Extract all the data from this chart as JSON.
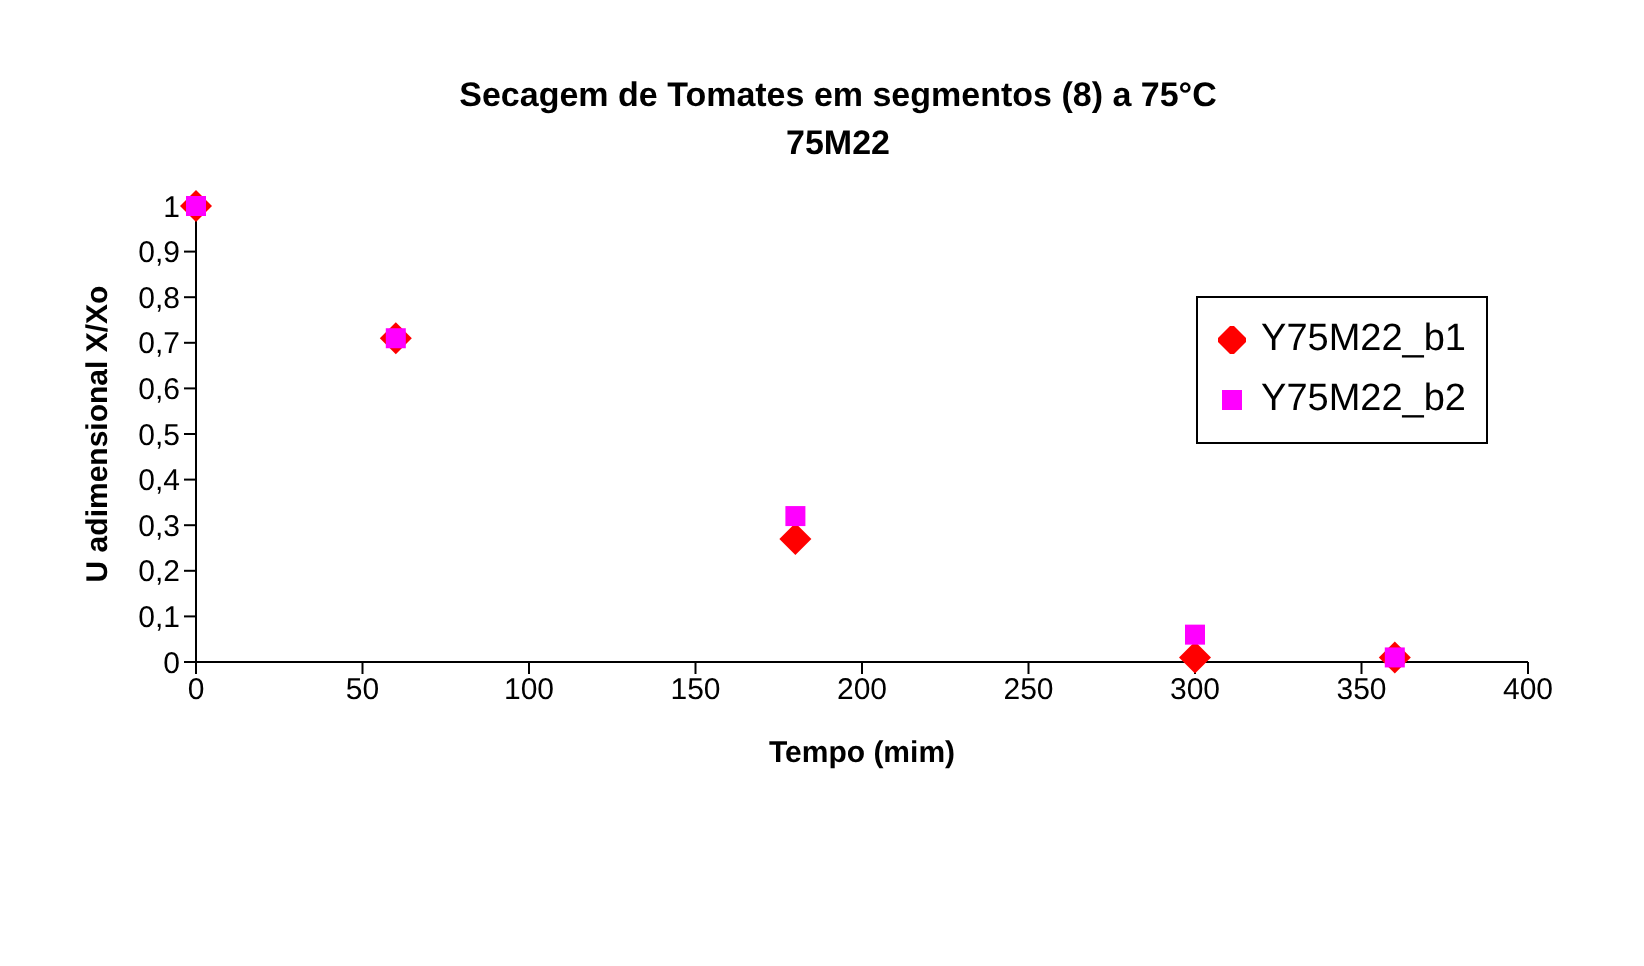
{
  "chart_data": {
    "type": "scatter",
    "title": "Secagem de Tomates em segmentos (8) a 75°C\n75M22",
    "xlabel": "Tempo (mim)",
    "ylabel": "U adimensional X/Xo",
    "series": [
      {
        "name": "Y75M22_b1",
        "color": "#ff0000",
        "marker": "diamond",
        "x": [
          0,
          60,
          180,
          300,
          360
        ],
        "values": [
          1,
          0.71,
          0.27,
          0.01,
          0.01
        ]
      },
      {
        "name": "Y75M22_b2",
        "color": "#ff00ff",
        "marker": "square",
        "x": [
          0,
          60,
          180,
          300,
          360
        ],
        "values": [
          1,
          0.71,
          0.32,
          0.06,
          0.01
        ]
      }
    ],
    "xlim": [
      0,
      400
    ],
    "xticks": [
      0,
      50,
      100,
      150,
      200,
      250,
      300,
      350,
      400
    ],
    "ylim": [
      0,
      1
    ],
    "yticks": [
      0,
      {
        "value": 0.1,
        "label": "0,1"
      },
      {
        "value": 0.2,
        "label": "0,2"
      },
      {
        "value": 0.3,
        "label": "0,3"
      },
      {
        "value": 0.4,
        "label": "0,4"
      },
      {
        "value": 0.5,
        "label": "0,5"
      },
      {
        "value": 0.6,
        "label": "0,6"
      },
      {
        "value": 0.7,
        "label": "0,7"
      },
      {
        "value": 0.8,
        "label": "0,8"
      },
      {
        "value": 0.9,
        "label": "0,9"
      },
      1
    ],
    "grid": false,
    "legend": "top right"
  }
}
